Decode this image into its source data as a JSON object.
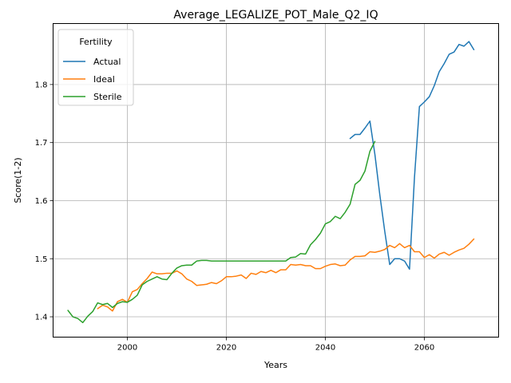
{
  "chart_data": {
    "type": "line",
    "title": "Average_LEGALIZE_POT_Male_Q2_IQ",
    "xlabel": "Years",
    "ylabel": "Score(1-2)",
    "xlim": [
      1985,
      2075
    ],
    "ylim": [
      1.365,
      1.905
    ],
    "xticks": [
      2000,
      2020,
      2040,
      2060
    ],
    "yticks": [
      1.4,
      1.5,
      1.6,
      1.7,
      1.8
    ],
    "grid": true,
    "legend": {
      "title": "Fertility",
      "position": "top-left"
    },
    "colors": {
      "Actual": "#1f77b4",
      "Ideal": "#ff7f0e",
      "Sterile": "#2ca02c"
    },
    "series": [
      {
        "name": "Actual",
        "x": [
          2045,
          2046,
          2047,
          2048,
          2049,
          2050,
          2051,
          2052,
          2053,
          2054,
          2055,
          2056,
          2057,
          2058,
          2059,
          2060,
          2061,
          2062,
          2063,
          2064,
          2065,
          2066,
          2067,
          2068,
          2069,
          2070
        ],
        "y": [
          1.707,
          1.714,
          1.714,
          1.725,
          1.737,
          1.68,
          1.61,
          1.547,
          1.49,
          1.5,
          1.5,
          1.496,
          1.482,
          1.64,
          1.762,
          1.77,
          1.779,
          1.798,
          1.822,
          1.836,
          1.852,
          1.856,
          1.869,
          1.866,
          1.874,
          1.86
        ]
      },
      {
        "name": "Ideal",
        "x": [
          1994,
          1995,
          1996,
          1997,
          1998,
          1999,
          2000,
          2001,
          2002,
          2003,
          2004,
          2005,
          2006,
          2007,
          2008,
          2009,
          2010,
          2011,
          2012,
          2013,
          2014,
          2015,
          2016,
          2017,
          2018,
          2019,
          2020,
          2021,
          2022,
          2023,
          2024,
          2025,
          2026,
          2027,
          2028,
          2029,
          2030,
          2031,
          2032,
          2033,
          2034,
          2035,
          2036,
          2037,
          2038,
          2039,
          2040,
          2041,
          2042,
          2043,
          2044,
          2045,
          2046,
          2047,
          2048,
          2049,
          2050,
          2051,
          2052,
          2053,
          2054,
          2055,
          2056,
          2057,
          2058,
          2059,
          2060,
          2061,
          2062,
          2063,
          2064,
          2065,
          2066,
          2067,
          2068,
          2069,
          2070
        ],
        "y": [
          1.414,
          1.42,
          1.417,
          1.41,
          1.426,
          1.43,
          1.425,
          1.443,
          1.447,
          1.457,
          1.466,
          1.477,
          1.474,
          1.474,
          1.475,
          1.475,
          1.479,
          1.474,
          1.465,
          1.461,
          1.454,
          1.455,
          1.456,
          1.459,
          1.457,
          1.462,
          1.469,
          1.469,
          1.47,
          1.472,
          1.466,
          1.475,
          1.473,
          1.478,
          1.476,
          1.48,
          1.476,
          1.481,
          1.481,
          1.49,
          1.489,
          1.49,
          1.488,
          1.488,
          1.483,
          1.483,
          1.487,
          1.49,
          1.491,
          1.488,
          1.489,
          1.498,
          1.504,
          1.504,
          1.505,
          1.512,
          1.511,
          1.513,
          1.516,
          1.523,
          1.519,
          1.526,
          1.519,
          1.523,
          1.512,
          1.512,
          1.502,
          1.507,
          1.501,
          1.508,
          1.511,
          1.506,
          1.511,
          1.515,
          1.518,
          1.525,
          1.534
        ]
      },
      {
        "name": "Sterile",
        "x": [
          1988,
          1989,
          1990,
          1991,
          1992,
          1993,
          1994,
          1995,
          1996,
          1997,
          1998,
          1999,
          2000,
          2001,
          2002,
          2003,
          2004,
          2005,
          2006,
          2007,
          2008,
          2009,
          2010,
          2011,
          2012,
          2013,
          2014,
          2015,
          2016,
          2017,
          2018,
          2019,
          2020,
          2021,
          2022,
          2023,
          2024,
          2025,
          2026,
          2027,
          2028,
          2029,
          2030,
          2031,
          2032,
          2033,
          2034,
          2035,
          2036,
          2037,
          2038,
          2039,
          2040,
          2041,
          2042,
          2043,
          2044,
          2045,
          2046,
          2047,
          2048,
          2049,
          2050
        ],
        "y": [
          1.411,
          1.4,
          1.397,
          1.39,
          1.401,
          1.409,
          1.424,
          1.421,
          1.423,
          1.416,
          1.423,
          1.426,
          1.425,
          1.43,
          1.437,
          1.455,
          1.461,
          1.465,
          1.469,
          1.465,
          1.464,
          1.475,
          1.484,
          1.488,
          1.489,
          1.489,
          1.496,
          1.497,
          1.497,
          1.496,
          1.496,
          1.496,
          1.496,
          1.496,
          1.496,
          1.496,
          1.496,
          1.496,
          1.496,
          1.496,
          1.496,
          1.496,
          1.496,
          1.496,
          1.496,
          1.502,
          1.503,
          1.509,
          1.508,
          1.524,
          1.533,
          1.544,
          1.56,
          1.564,
          1.573,
          1.569,
          1.58,
          1.594,
          1.628,
          1.635,
          1.651,
          1.685,
          1.702
        ]
      }
    ]
  }
}
